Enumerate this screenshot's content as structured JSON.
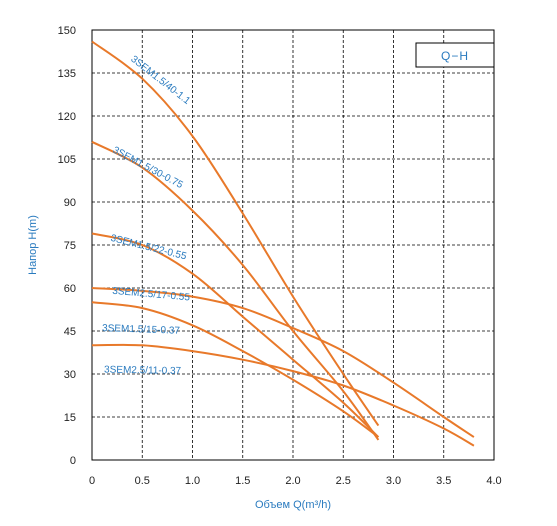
{
  "chart_data": {
    "type": "line",
    "title": "",
    "xlabel": "Объем Q(m³/h)",
    "ylabel": "Напор H(m)",
    "xlim": [
      0,
      4.0
    ],
    "ylim": [
      0,
      150
    ],
    "x_ticks": [
      "0",
      "0.5",
      "1.0",
      "1.5",
      "2.0",
      "2.5",
      "3.0",
      "3.5",
      "4.0"
    ],
    "y_ticks": [
      "0",
      "15",
      "30",
      "45",
      "60",
      "75",
      "90",
      "105",
      "120",
      "135",
      "150"
    ],
    "grid": true,
    "legend_box": "Q−H",
    "line_color": "#e8792a",
    "label_color": "#2a7bbf",
    "series": [
      {
        "name": "3SEM1.5/40-1.1",
        "x": [
          0,
          0.5,
          1.0,
          1.5,
          2.0,
          2.5,
          2.85
        ],
        "y": [
          146,
          133,
          113,
          86,
          57,
          30,
          12
        ]
      },
      {
        "name": "3SEM1.5/30-0.75",
        "x": [
          0,
          0.5,
          1.0,
          1.5,
          2.0,
          2.5,
          2.85
        ],
        "y": [
          111,
          102,
          87,
          68,
          45,
          24,
          7
        ]
      },
      {
        "name": "3SEM1.5/22-0.55",
        "x": [
          0,
          0.5,
          1.0,
          1.5,
          2.0,
          2.5,
          2.85
        ],
        "y": [
          79,
          75,
          65,
          50,
          35,
          20,
          8
        ]
      },
      {
        "name": "3SEM2.5/17-0.55",
        "x": [
          0,
          0.5,
          1.0,
          1.5,
          2.0,
          2.5,
          3.0,
          3.5,
          3.8
        ],
        "y": [
          60,
          59,
          57,
          53,
          46,
          38,
          27,
          15,
          8
        ]
      },
      {
        "name": "3SEM1.5/15-0.37",
        "x": [
          0,
          0.5,
          1.0,
          1.5,
          2.0,
          2.5,
          2.85
        ],
        "y": [
          55,
          53,
          47,
          38,
          28,
          17,
          8
        ]
      },
      {
        "name": "3SEM2.5/11-0.37",
        "x": [
          0,
          0.5,
          1.0,
          1.5,
          2.0,
          2.5,
          3.0,
          3.5,
          3.8
        ],
        "y": [
          40,
          40,
          38,
          35,
          31,
          26,
          19,
          11,
          5
        ]
      }
    ]
  }
}
